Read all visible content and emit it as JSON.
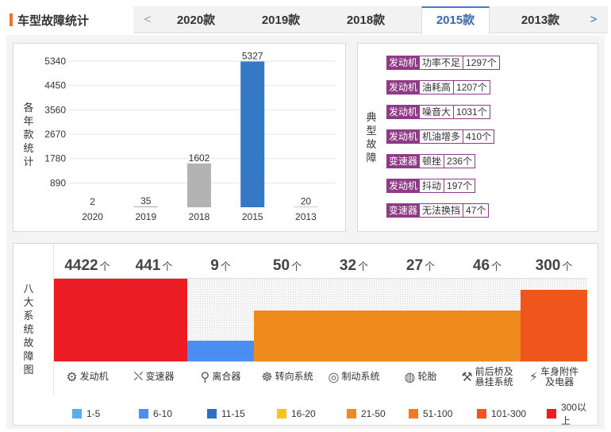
{
  "header": {
    "title": "车型故障统计",
    "tabs": [
      "2020款",
      "2019款",
      "2018款",
      "2015款",
      "2013款"
    ],
    "active_tab": "2015款",
    "prev_arrow": "<",
    "next_arrow": ">"
  },
  "year_panel": {
    "ylabel": "各年款统计",
    "chart_data": {
      "type": "bar",
      "categories": [
        "2020",
        "2019",
        "2018",
        "2015",
        "2013"
      ],
      "values": [
        2,
        35,
        1602,
        5327,
        20
      ],
      "yticks": [
        890,
        1780,
        2670,
        3560,
        4450,
        5340
      ],
      "ylim": [
        0,
        5340
      ],
      "colors": [
        "#b3b3b3",
        "#b3b3b3",
        "#b3b3b3",
        "#3478c6",
        "#b3b3b3"
      ],
      "grid": true
    }
  },
  "faults_panel": {
    "label": "典型故障",
    "items": [
      {
        "cat": "发动机",
        "desc": "功率不足",
        "count": "1297个"
      },
      {
        "cat": "发动机",
        "desc": "油耗高",
        "count": "1207个"
      },
      {
        "cat": "发动机",
        "desc": "噪音大",
        "count": "1031个"
      },
      {
        "cat": "发动机",
        "desc": "机油增多",
        "count": "410个"
      },
      {
        "cat": "变速器",
        "desc": "顿挫",
        "count": "236个"
      },
      {
        "cat": "发动机",
        "desc": "抖动",
        "count": "197个"
      },
      {
        "cat": "变速器",
        "desc": "无法换挡",
        "count": "47个"
      }
    ]
  },
  "systems_panel": {
    "label": "八大系统故障图",
    "unit": "个",
    "systems": [
      {
        "name": "发动机",
        "count": "4422",
        "level": 1.0,
        "color": "#ec1c24",
        "icon": "engine-icon",
        "glyph": "⚙"
      },
      {
        "name": "变速器",
        "count": "441",
        "level": 1.0,
        "color": "#ec1c24",
        "icon": "gear-shift-icon",
        "glyph": "⛌"
      },
      {
        "name": "离合器",
        "count": "9",
        "level": 0.25,
        "color": "#4a8ef2",
        "icon": "clutch-icon",
        "glyph": "⚲"
      },
      {
        "name": "转向系统",
        "count": "50",
        "level": 0.62,
        "color": "#ef8a1d",
        "icon": "steering-wheel-icon",
        "glyph": "☸"
      },
      {
        "name": "制动系统",
        "count": "32",
        "level": 0.62,
        "color": "#ef8a1d",
        "icon": "brake-disc-icon",
        "glyph": "◎"
      },
      {
        "name": "轮胎",
        "count": "27",
        "level": 0.62,
        "color": "#ef8a1d",
        "icon": "tire-icon",
        "glyph": "◍"
      },
      {
        "name": "前后桥及悬挂系统",
        "name_lines": [
          "前后桥及",
          "悬挂系统"
        ],
        "count": "46",
        "level": 0.62,
        "color": "#ef8a1d",
        "icon": "suspension-icon",
        "glyph": "⚒"
      },
      {
        "name": "车身附件及电器",
        "name_lines": [
          "车身附件",
          "及电器"
        ],
        "count": "300",
        "level": 0.87,
        "color": "#f0561b",
        "icon": "battery-icon",
        "glyph": "⚡"
      }
    ],
    "legend": [
      {
        "label": "1-5",
        "color": "#5aaef0"
      },
      {
        "label": "6-10",
        "color": "#4a8ef2"
      },
      {
        "label": "11-15",
        "color": "#2d6fc3"
      },
      {
        "label": "16-20",
        "color": "#f5c518"
      },
      {
        "label": "21-50",
        "color": "#ef8a1d"
      },
      {
        "label": "51-100",
        "color": "#f37a21"
      },
      {
        "label": "101-300",
        "color": "#f0561b"
      },
      {
        "label": "300以上",
        "color": "#ec1c24"
      }
    ]
  }
}
